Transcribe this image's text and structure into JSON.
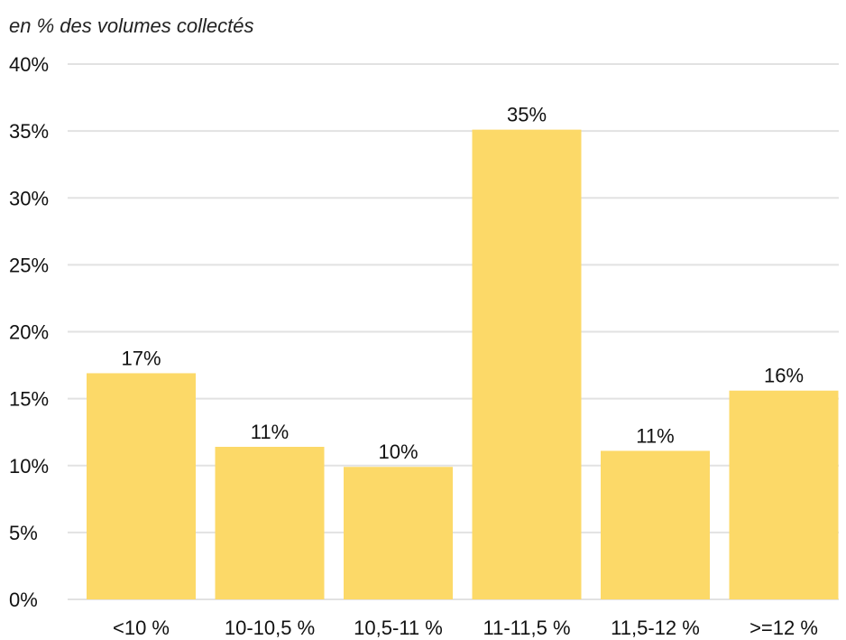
{
  "chart_data": {
    "type": "bar",
    "subtitle": "en % des volumes collectés",
    "categories": [
      "<10 %",
      "10-10,5 %",
      "10,5-11 %",
      "11-11,5 %",
      "11,5-12 %",
      ">=12 %"
    ],
    "values": [
      16.9,
      11.4,
      9.9,
      35.1,
      11.1,
      15.6
    ],
    "data_labels": [
      "17%",
      "11%",
      "10%",
      "35%",
      "11%",
      "16%"
    ],
    "ylim": [
      0,
      40
    ],
    "y_ticks": [
      0,
      5,
      10,
      15,
      20,
      25,
      30,
      35,
      40
    ],
    "y_tick_labels": [
      "0%",
      "5%",
      "10%",
      "15%",
      "20%",
      "25%",
      "30%",
      "35%",
      "40%"
    ],
    "grid": true,
    "bar_color": "#fcd968",
    "grid_color": "#e2e2e2"
  }
}
